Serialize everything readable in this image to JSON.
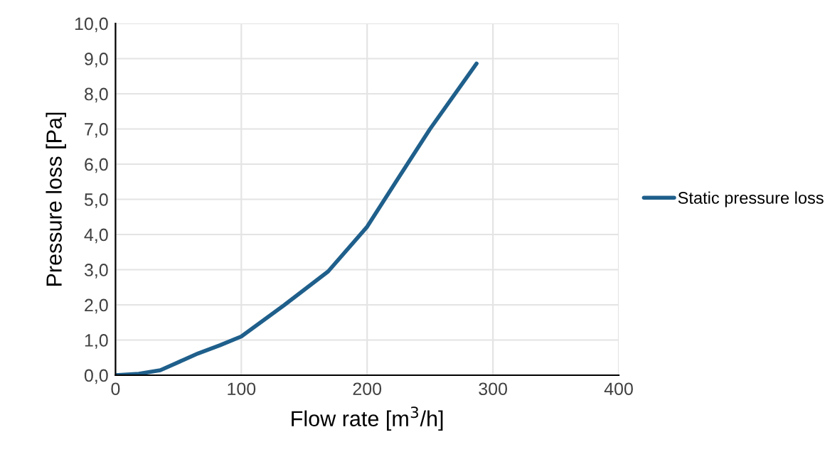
{
  "chart_data": {
    "type": "line",
    "xlabel": "Flow rate [m$^{3}$/h]",
    "ylabel": "Pressure loss [Pa]",
    "xlim": [
      0,
      400
    ],
    "xticks": [
      0,
      100,
      200,
      300,
      400
    ],
    "ylim": [
      0,
      10
    ],
    "yticks": [
      {
        "value": 0,
        "label": "0,0"
      },
      {
        "value": 1,
        "label": "1,0"
      },
      {
        "value": 2,
        "label": "2,0"
      },
      {
        "value": 3,
        "label": "3,0"
      },
      {
        "value": 4,
        "label": "4,0"
      },
      {
        "value": 5,
        "label": "5,0"
      },
      {
        "value": 6,
        "label": "6,0"
      },
      {
        "value": 7,
        "label": "7,0"
      },
      {
        "value": 8,
        "label": "8,0"
      },
      {
        "value": 9,
        "label": "9,0"
      },
      {
        "value": 10,
        "label": "10,0"
      }
    ],
    "grid": true,
    "legend": "right",
    "marker": "none",
    "line_style": "solid",
    "series": [
      {
        "name": "Static pressure loss",
        "color": "#1f5f8b",
        "x": [
          0,
          18.5,
          35.6,
          65.7,
          83,
          100,
          134,
          169,
          200,
          224,
          250,
          287
        ],
        "values": [
          0,
          0.04,
          0.14,
          0.62,
          0.85,
          1.1,
          1.99,
          2.95,
          4.22,
          5.56,
          7.0,
          8.86
        ]
      }
    ]
  }
}
